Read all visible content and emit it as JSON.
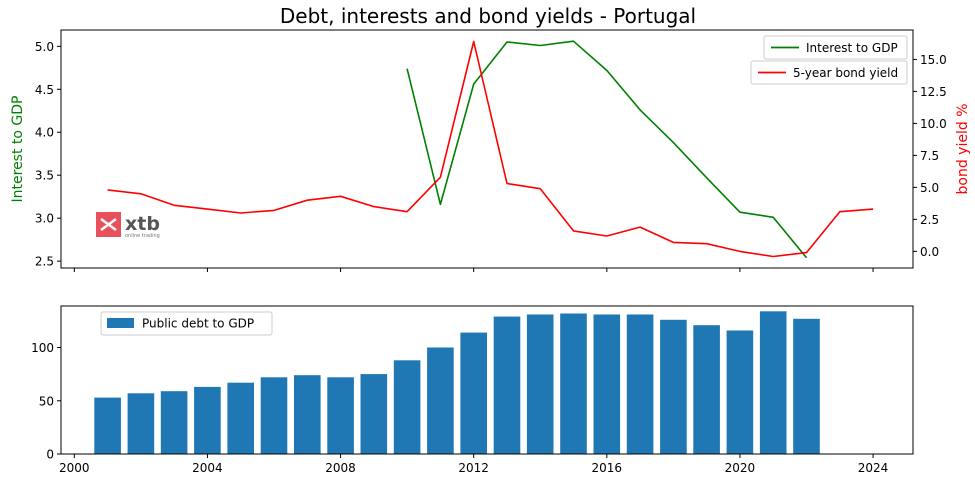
{
  "chart_data": [
    {
      "type": "line",
      "title": "Debt, interests and bond yields - Portugal",
      "xlabel": "",
      "ylabel": "Interest to GDP",
      "y2label": "bond yield %",
      "xlim": [
        1999.6,
        2025.2
      ],
      "ylim": [
        2.42,
        5.19
      ],
      "y2lim": [
        -1.3,
        17.3
      ],
      "yticks": [
        "2.5",
        "3.0",
        "3.5",
        "4.0",
        "4.5",
        "5.0"
      ],
      "y2ticks": [
        "0.0",
        "2.5",
        "5.0",
        "7.5",
        "10.0",
        "12.5",
        "15.0"
      ],
      "grid": false,
      "legend_placement": "top-right",
      "colors": {
        "interest": "#008000",
        "yield": "#ff0000",
        "watermark": "#e8505b"
      },
      "watermark": {
        "brand": "xtb",
        "tagline": "online trading"
      },
      "series": [
        {
          "name": "Interest to GDP",
          "axis": "left",
          "x": [
            2010,
            2011,
            2012,
            2013,
            2014,
            2015,
            2016,
            2017,
            2018,
            2019,
            2020,
            2021,
            2022
          ],
          "values": [
            4.74,
            3.16,
            4.56,
            5.05,
            5.01,
            5.06,
            4.72,
            4.26,
            3.88,
            3.47,
            3.07,
            3.01,
            2.54
          ]
        },
        {
          "name": "5-year bond yield",
          "axis": "right",
          "x": [
            2001,
            2002,
            2003,
            2004,
            2005,
            2006,
            2007,
            2008,
            2009,
            2010,
            2011,
            2012,
            2013,
            2014,
            2015,
            2016,
            2017,
            2018,
            2019,
            2020,
            2021,
            2022,
            2023,
            2024
          ],
          "values": [
            4.8,
            4.5,
            3.6,
            3.3,
            3.0,
            3.2,
            4.0,
            4.3,
            3.5,
            3.1,
            5.8,
            16.4,
            5.3,
            4.9,
            1.6,
            1.2,
            1.9,
            0.7,
            0.6,
            0.0,
            -0.4,
            -0.1,
            3.1,
            3.3
          ]
        }
      ]
    },
    {
      "type": "bar",
      "title": "",
      "xlabel": "",
      "ylabel": "",
      "xlim": [
        1999.6,
        2025.2
      ],
      "ylim": [
        0,
        139
      ],
      "yticks": [
        "0",
        "50",
        "100"
      ],
      "xticks": [
        "2000",
        "2004",
        "2008",
        "2012",
        "2016",
        "2020",
        "2024"
      ],
      "grid": false,
      "legend_placement": "top-left",
      "colors": {
        "bar": "#1f77b4"
      },
      "series": [
        {
          "name": "Public debt to GDP",
          "x": [
            2001,
            2002,
            2003,
            2004,
            2005,
            2006,
            2007,
            2008,
            2009,
            2010,
            2011,
            2012,
            2013,
            2014,
            2015,
            2016,
            2017,
            2018,
            2019,
            2020,
            2021,
            2022
          ],
          "values": [
            53,
            57,
            59,
            63,
            67,
            72,
            74,
            72,
            75,
            88,
            100,
            114,
            129,
            131,
            132,
            131,
            131,
            126,
            121,
            116,
            134,
            127
          ]
        }
      ]
    }
  ]
}
